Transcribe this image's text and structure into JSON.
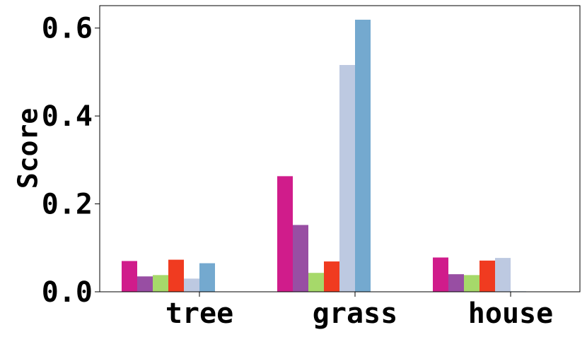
{
  "chart_data": {
    "type": "bar",
    "y_label": "Score",
    "categories": [
      "tree",
      "grass",
      "house"
    ],
    "series": [
      {
        "color": "#d01c8b",
        "values": [
          0.07,
          0.263,
          0.078
        ]
      },
      {
        "color": "#984ea3",
        "values": [
          0.035,
          0.152,
          0.04
        ]
      },
      {
        "color": "#a6d96a",
        "values": [
          0.038,
          0.043,
          0.038
        ]
      },
      {
        "color": "#f03b20",
        "values": [
          0.073,
          0.069,
          0.071
        ]
      },
      {
        "color": "#bdc9e1",
        "values": [
          0.03,
          0.516,
          0.077
        ]
      },
      {
        "color": "#74a9cf",
        "values": [
          0.065,
          0.619,
          0.001
        ]
      }
    ],
    "ylim": [
      0,
      0.651
    ],
    "yticks": [
      {
        "value": 0,
        "label": "0.0"
      },
      0.2,
      0.4,
      0.6
    ]
  }
}
